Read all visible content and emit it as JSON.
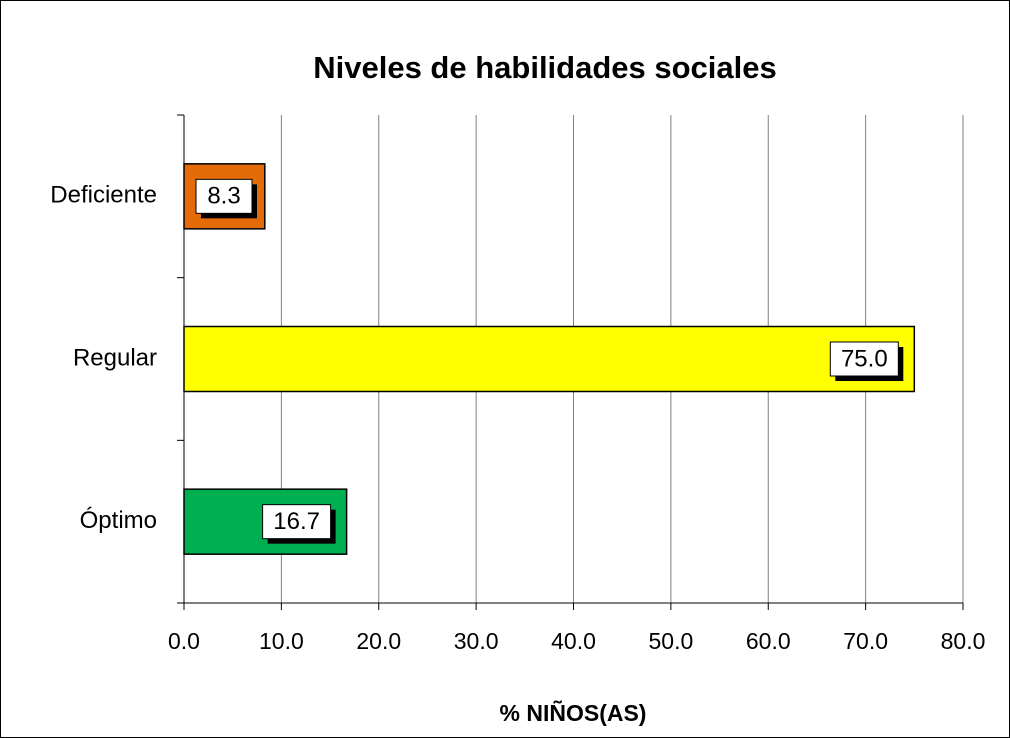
{
  "chart_data": {
    "type": "bar",
    "orientation": "horizontal",
    "title": "Niveles de habilidades sociales",
    "x_label": "% NIÑOS(AS)",
    "categories": [
      "Deficiente",
      "Regular",
      "Óptimo"
    ],
    "values": [
      8.3,
      75.0,
      16.7
    ],
    "value_labels": [
      "8.3",
      "75.0",
      "16.7"
    ],
    "colors": [
      "#E36C09",
      "#FFFF00",
      "#00B050"
    ],
    "xlim": [
      0,
      80
    ],
    "xticks": [
      {
        "value": 0,
        "label": "0.0"
      },
      {
        "value": 10,
        "label": "10.0"
      },
      {
        "value": 20,
        "label": "20.0"
      },
      {
        "value": 30,
        "label": "30.0"
      },
      {
        "value": 40,
        "label": "40.0"
      },
      {
        "value": 50,
        "label": "50.0"
      },
      {
        "value": 60,
        "label": "60.0"
      },
      {
        "value": 70,
        "label": "70.0"
      },
      {
        "value": 80,
        "label": "80.0"
      }
    ],
    "grid": true
  }
}
